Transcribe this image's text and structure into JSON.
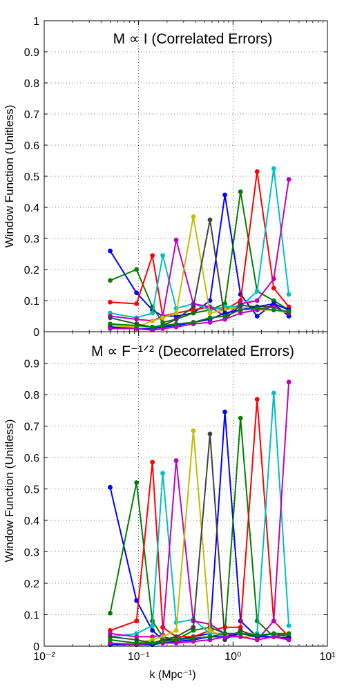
{
  "figure": {
    "xlabel": "k (Mpc⁻¹)",
    "ylabel": "Window Function (Unitless)"
  },
  "chart_data": [
    {
      "type": "line",
      "title": "M ∝ I (Correlated Errors)",
      "xscale": "log",
      "xlim": [
        0.01,
        10
      ],
      "ylim": [
        0,
        1
      ],
      "yticks": [
        "0",
        "0.1",
        "0.2",
        "0.3",
        "0.4",
        "0.5",
        "0.6",
        "0.7",
        "0.8",
        "0.9",
        "1"
      ],
      "grid": true,
      "x": [
        0.05,
        0.095,
        0.14,
        0.18,
        0.25,
        0.38,
        0.57,
        0.82,
        1.2,
        1.8,
        2.7,
        3.9
      ],
      "series": [
        {
          "color": "#0000ff",
          "values": [
            0.26,
            0.125,
            0.07,
            0.05,
            0.05,
            0.06,
            0.1,
            0.44,
            0.12,
            0.05,
            0.09,
            0.05
          ]
        },
        {
          "color": "#007f00",
          "values": [
            0.165,
            0.2,
            0.08,
            0.03,
            0.04,
            0.06,
            0.07,
            0.09,
            0.45,
            0.13,
            0.1,
            0.07
          ]
        },
        {
          "color": "#ff0000",
          "values": [
            0.095,
            0.09,
            0.245,
            0.05,
            0.06,
            0.07,
            0.08,
            0.07,
            0.1,
            0.515,
            0.14,
            0.08
          ]
        },
        {
          "color": "#00bfbf",
          "values": [
            0.06,
            0.045,
            0.06,
            0.245,
            0.075,
            0.09,
            0.07,
            0.08,
            0.08,
            0.13,
            0.525,
            0.12
          ]
        },
        {
          "color": "#bf00bf",
          "values": [
            0.05,
            0.04,
            0.035,
            0.05,
            0.295,
            0.09,
            0.08,
            0.05,
            0.09,
            0.1,
            0.17,
            0.49
          ]
        },
        {
          "color": "#bfbf00",
          "values": [
            0.02,
            0.015,
            0.035,
            0.045,
            0.06,
            0.37,
            0.06,
            0.07,
            0.08,
            0.07,
            0.07,
            0.06
          ]
        },
        {
          "color": "#404040",
          "values": [
            0.045,
            0.025,
            0.015,
            0.02,
            0.04,
            0.08,
            0.36,
            0.04,
            0.085,
            0.08,
            0.08,
            0.06
          ]
        },
        {
          "color": "#0000ff",
          "values": [
            0.015,
            0.01,
            0.01,
            0.015,
            0.02,
            0.03,
            0.04,
            0.06,
            0.07,
            0.08,
            0.09,
            0.07
          ]
        },
        {
          "color": "#bf00bf",
          "values": [
            0.01,
            0.01,
            0.005,
            0.01,
            0.015,
            0.025,
            0.03,
            0.04,
            0.06,
            0.07,
            0.08,
            0.06
          ]
        },
        {
          "color": "#007f00",
          "values": [
            0.025,
            0.02,
            0.015,
            0.02,
            0.025,
            0.03,
            0.045,
            0.05,
            0.07,
            0.075,
            0.07,
            0.065
          ]
        }
      ]
    },
    {
      "type": "line",
      "title": "M ∝ F⁻¹ᐟ² (Decorrelated Errors)",
      "xscale": "log",
      "xlim": [
        0.01,
        10
      ],
      "ylim": [
        0,
        1
      ],
      "yticks": [
        "0",
        "0.1",
        "0.2",
        "0.3",
        "0.4",
        "0.5",
        "0.6",
        "0.7",
        "0.8",
        "0.9"
      ],
      "xticks": [
        "10⁻²",
        "10⁻¹",
        "10⁰",
        "10¹"
      ],
      "grid": true,
      "x": [
        0.05,
        0.095,
        0.14,
        0.18,
        0.25,
        0.38,
        0.57,
        0.82,
        1.2,
        1.8,
        2.7,
        3.9
      ],
      "series": [
        {
          "color": "#0000ff",
          "values": [
            0.505,
            0.145,
            0.05,
            0.02,
            0.02,
            0.03,
            0.04,
            0.745,
            0.08,
            0.03,
            0.03,
            0.02
          ]
        },
        {
          "color": "#007f00",
          "values": [
            0.105,
            0.52,
            0.08,
            0.03,
            0.02,
            0.05,
            0.06,
            0.04,
            0.725,
            0.08,
            0.03,
            0.04
          ]
        },
        {
          "color": "#ff0000",
          "values": [
            0.05,
            0.08,
            0.585,
            0.06,
            0.03,
            0.03,
            0.05,
            0.06,
            0.06,
            0.785,
            0.08,
            0.03
          ]
        },
        {
          "color": "#00bfbf",
          "values": [
            0.03,
            0.04,
            0.065,
            0.55,
            0.075,
            0.085,
            0.04,
            0.04,
            0.04,
            0.04,
            0.805,
            0.065
          ]
        },
        {
          "color": "#bf00bf",
          "values": [
            0.04,
            0.03,
            0.03,
            0.035,
            0.59,
            0.08,
            0.07,
            0.04,
            0.03,
            0.02,
            0.08,
            0.84
          ]
        },
        {
          "color": "#bfbf00",
          "values": [
            0.005,
            0.01,
            0.02,
            0.03,
            0.05,
            0.685,
            0.05,
            0.03,
            0.03,
            0.03,
            0.04,
            0.03
          ]
        },
        {
          "color": "#404040",
          "values": [
            0.03,
            0.02,
            0.01,
            0.02,
            0.03,
            0.06,
            0.675,
            0.02,
            0.05,
            0.03,
            0.04,
            0.03
          ]
        },
        {
          "color": "#0000ff",
          "values": [
            0.005,
            0.005,
            0.005,
            0.01,
            0.015,
            0.02,
            0.03,
            0.03,
            0.04,
            0.03,
            0.03,
            0.025
          ]
        },
        {
          "color": "#bf00bf",
          "values": [
            0.01,
            0.005,
            0.01,
            0.01,
            0.01,
            0.015,
            0.02,
            0.03,
            0.03,
            0.02,
            0.03,
            0.02
          ]
        },
        {
          "color": "#007f00",
          "values": [
            0.02,
            0.01,
            0.01,
            0.015,
            0.02,
            0.025,
            0.03,
            0.04,
            0.04,
            0.035,
            0.04,
            0.04
          ]
        }
      ]
    }
  ]
}
